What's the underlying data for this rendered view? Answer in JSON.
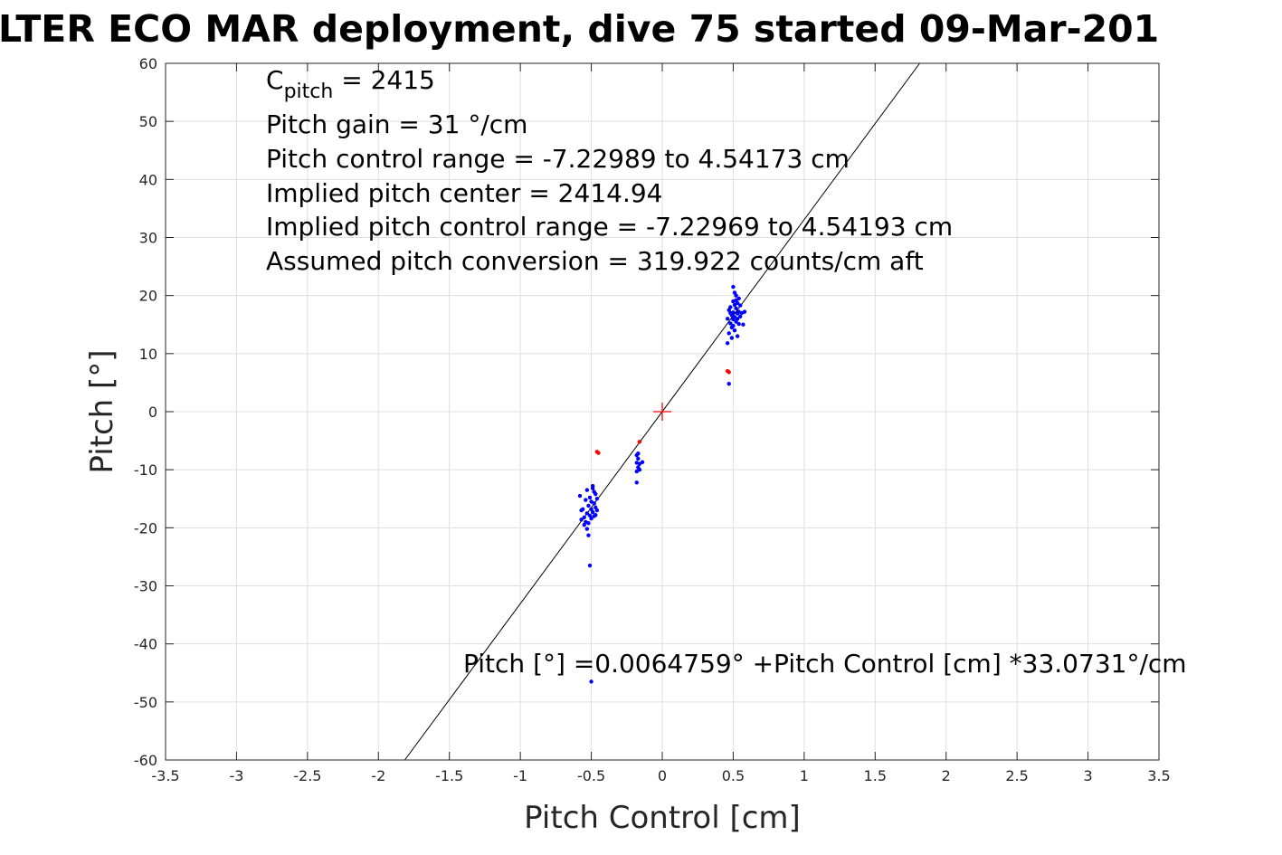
{
  "chart_data": {
    "type": "scatter",
    "title": "LTER ECO MAR deployment, dive 75 started 09-Mar-201",
    "xlabel": "Pitch Control [cm]",
    "ylabel": "Pitch [°]",
    "xlim": [
      -3.5,
      3.5
    ],
    "ylim": [
      -60,
      60
    ],
    "grid": true,
    "xticks": [
      "-3.5",
      "-3",
      "-2.5",
      "-2",
      "-1.5",
      "-1",
      "-0.5",
      "0",
      "0.5",
      "1",
      "1.5",
      "2",
      "2.5",
      "3",
      "3.5"
    ],
    "yticks": [
      "60",
      "50",
      "40",
      "30",
      "20",
      "10",
      "0",
      "-10",
      "-20",
      "-30",
      "-40",
      "-50",
      "-60"
    ],
    "annotations": {
      "cpitch_base": "C",
      "cpitch_sub": "pitch",
      "cpitch_value": " = 2415",
      "lines": [
        "Pitch gain = 31 °/cm",
        "Pitch control range = -7.22989 to 4.54173 cm",
        "Implied pitch center = 2414.94",
        "Implied pitch control range = -7.22969 to 4.54193 cm",
        "Assumed pitch conversion = 319.922 counts/cm aft"
      ],
      "fit_equation": "Pitch [°] =0.0064759° +Pitch Control [cm] *33.0731°/cm"
    },
    "fit_line": {
      "intercept": 0.0064759,
      "slope": 33.0731,
      "color": "#000000"
    },
    "center_marker": {
      "x": 0,
      "y": 0,
      "color": "#ff0000"
    },
    "series": [
      {
        "color": "#0000ff",
        "points": [
          [
            0.46,
            16.0
          ],
          [
            0.47,
            17.5
          ],
          [
            0.48,
            15.2
          ],
          [
            0.48,
            18.0
          ],
          [
            0.49,
            16.6
          ],
          [
            0.49,
            14.5
          ],
          [
            0.5,
            17.1
          ],
          [
            0.5,
            15.9
          ],
          [
            0.5,
            19.0
          ],
          [
            0.51,
            16.3
          ],
          [
            0.51,
            18.4
          ],
          [
            0.51,
            14.0
          ],
          [
            0.52,
            17.8
          ],
          [
            0.52,
            15.5
          ],
          [
            0.52,
            20.0
          ],
          [
            0.53,
            16.9
          ],
          [
            0.53,
            18.7
          ],
          [
            0.53,
            13.0
          ],
          [
            0.54,
            17.2
          ],
          [
            0.54,
            15.1
          ],
          [
            0.55,
            18.3
          ],
          [
            0.55,
            16.4
          ],
          [
            0.56,
            17.0
          ],
          [
            0.57,
            15.0
          ],
          [
            0.58,
            17.2
          ],
          [
            0.47,
            13.5
          ],
          [
            0.5,
            21.5
          ],
          [
            0.51,
            20.5
          ],
          [
            0.49,
            12.7
          ],
          [
            0.52,
            19.2
          ],
          [
            0.48,
            17.0
          ],
          [
            0.54,
            19.5
          ],
          [
            0.46,
            11.8
          ],
          [
            0.47,
            4.8
          ],
          [
            0.53,
            16.0
          ],
          [
            0.5,
            14.8
          ],
          [
            -0.58,
            -14.5
          ],
          [
            -0.57,
            -17.0
          ],
          [
            -0.57,
            -18.6
          ],
          [
            -0.56,
            -16.8
          ],
          [
            -0.55,
            -18.2
          ],
          [
            -0.54,
            -15.2
          ],
          [
            -0.54,
            -19.0
          ],
          [
            -0.53,
            -17.5
          ],
          [
            -0.53,
            -13.5
          ],
          [
            -0.52,
            -16.2
          ],
          [
            -0.52,
            -19.2
          ],
          [
            -0.51,
            -14.8
          ],
          [
            -0.51,
            -17.9
          ],
          [
            -0.5,
            -15.5
          ],
          [
            -0.5,
            -18.4
          ],
          [
            -0.5,
            -16.8
          ],
          [
            -0.49,
            -13.2
          ],
          [
            -0.49,
            -17.3
          ],
          [
            -0.48,
            -15.8
          ],
          [
            -0.48,
            -18.0
          ],
          [
            -0.47,
            -16.5
          ],
          [
            -0.47,
            -14.2
          ],
          [
            -0.46,
            -17.0
          ],
          [
            -0.46,
            -15.0
          ],
          [
            -0.52,
            -21.3
          ],
          [
            -0.51,
            -26.5
          ],
          [
            -0.5,
            -46.5
          ],
          [
            -0.55,
            -19.5
          ],
          [
            -0.53,
            -20.2
          ],
          [
            -0.49,
            -12.8
          ],
          [
            -0.47,
            -17.8
          ],
          [
            -0.48,
            -13.8
          ],
          [
            -0.18,
            -7.5
          ],
          [
            -0.18,
            -8.8
          ],
          [
            -0.17,
            -9.6
          ],
          [
            -0.18,
            -10.3
          ],
          [
            -0.17,
            -8.1
          ],
          [
            -0.16,
            -9.0
          ],
          [
            -0.14,
            -8.7
          ],
          [
            -0.18,
            -12.2
          ],
          [
            -0.17,
            -7.2
          ],
          [
            -0.16,
            -10.0
          ]
        ]
      },
      {
        "color": "#ff0000",
        "points": [
          [
            0.46,
            7.0
          ],
          [
            0.47,
            6.8
          ],
          [
            -0.46,
            -6.9
          ],
          [
            -0.45,
            -7.1
          ],
          [
            -0.16,
            -5.2
          ]
        ]
      }
    ]
  }
}
